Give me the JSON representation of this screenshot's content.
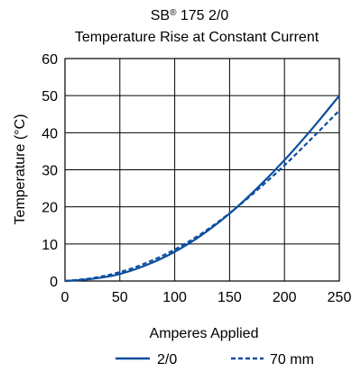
{
  "chart_data": {
    "type": "line",
    "title_prefix": "SB",
    "title_reg": "®",
    "title_suffix": " 175 2/0",
    "subtitle": "Temperature Rise at Constant Current",
    "xlabel": "Amperes Applied",
    "ylabel": "Temperature (°C)",
    "xlim": [
      0,
      250
    ],
    "ylim": [
      0,
      60
    ],
    "xticks": [
      0,
      50,
      100,
      150,
      200,
      250
    ],
    "yticks": [
      0,
      10,
      20,
      30,
      40,
      50,
      60
    ],
    "grid": true,
    "legend_placement": "bottom",
    "series": [
      {
        "name": "2/0",
        "color": "#0b4fa0",
        "style": "solid",
        "x": [
          0,
          25,
          50,
          75,
          100,
          125,
          150,
          175,
          200,
          225,
          250
        ],
        "y": [
          0,
          0.6,
          1.9,
          4.4,
          7.9,
          12.5,
          18.2,
          25.0,
          32.6,
          41.0,
          50.0
        ]
      },
      {
        "name": "70 mm",
        "color": "#0b4fa0",
        "style": "dashed",
        "x": [
          0,
          25,
          50,
          75,
          100,
          125,
          150,
          175,
          200,
          225,
          250
        ],
        "y": [
          0,
          0.8,
          2.4,
          5.0,
          8.5,
          12.9,
          18.3,
          24.5,
          31.2,
          38.5,
          46.0
        ]
      }
    ]
  }
}
